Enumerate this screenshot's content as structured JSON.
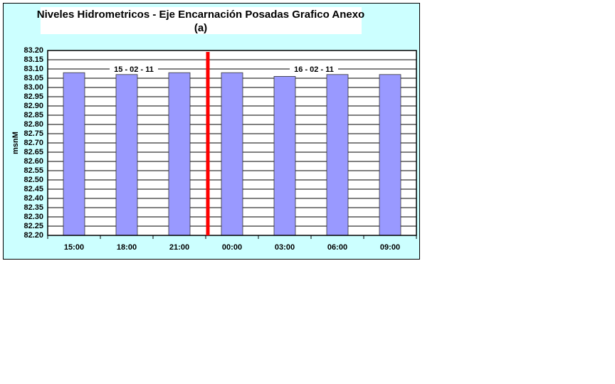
{
  "chart_data": {
    "type": "bar",
    "title": "Niveles Hidrometricos - Eje Encarnación Posadas Grafico Anexo",
    "subtitle": "(a)",
    "y_label": "msnM",
    "categories": [
      "15:00",
      "18:00",
      "21:00",
      "00:00",
      "03:00",
      "06:00",
      "09:00"
    ],
    "values": [
      83.08,
      83.07,
      83.08,
      83.08,
      83.06,
      83.07,
      83.07
    ],
    "color": "#9999ff",
    "ylim": [
      82.2,
      83.2
    ],
    "yticks": [
      {
        "value": 82.2,
        "label": "82.20"
      },
      82.25,
      {
        "value": 82.3,
        "label": "82.30"
      },
      82.35,
      {
        "value": 82.4,
        "label": "82.40"
      },
      82.45,
      {
        "value": 82.5,
        "label": "82.50"
      },
      82.55,
      {
        "value": 82.6,
        "label": "82.60"
      },
      82.65,
      {
        "value": 82.7,
        "label": "82.70"
      },
      82.75,
      {
        "value": 82.8,
        "label": "82.80"
      },
      82.85,
      {
        "value": 82.9,
        "label": "82.90"
      },
      82.95,
      {
        "value": 83.0,
        "label": "83.00"
      },
      83.05,
      {
        "value": 83.1,
        "label": "83.10"
      },
      83.15,
      {
        "value": 83.2,
        "label": "83.20"
      }
    ],
    "grid": true,
    "annotations": [
      "15 - 02 - 11",
      "16 - 02 - 11"
    ]
  }
}
